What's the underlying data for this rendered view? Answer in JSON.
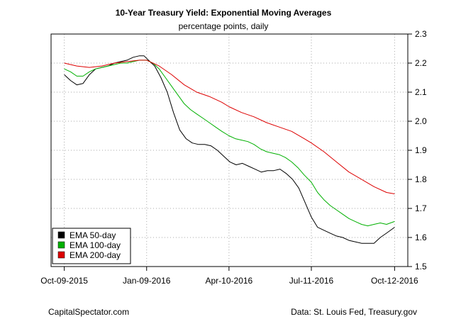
{
  "chart_data": {
    "type": "line",
    "title": "10-Year Treasury Yield: Exponential Moving Averages",
    "subtitle": "percentage points, daily",
    "xlabel": "",
    "ylabel": "",
    "x_ticks": [
      "Oct-09-2015",
      "Jan-09-2016",
      "Apr-10-2016",
      "Jul-11-2016",
      "Oct-12-2016"
    ],
    "x_tick_dates": [
      "2015-10-09",
      "2016-01-09",
      "2016-04-10",
      "2016-07-11",
      "2016-10-12"
    ],
    "xlim": [
      "2015-10-09",
      "2016-10-12"
    ],
    "ylim": [
      1.5,
      2.3
    ],
    "y_ticks": [
      1.5,
      1.6,
      1.7,
      1.8,
      1.9,
      2.0,
      2.1,
      2.2,
      2.3
    ],
    "y_axis_side": "right",
    "grid": true,
    "legend_position": "bottom-left",
    "series": [
      {
        "name": "EMA 50-day",
        "color": "#000000",
        "points": [
          [
            "2015-10-09",
            2.16
          ],
          [
            "2015-10-16",
            2.14
          ],
          [
            "2015-10-23",
            2.125
          ],
          [
            "2015-10-30",
            2.13
          ],
          [
            "2015-11-06",
            2.16
          ],
          [
            "2015-11-13",
            2.18
          ],
          [
            "2015-11-20",
            2.185
          ],
          [
            "2015-11-27",
            2.19
          ],
          [
            "2015-12-04",
            2.2
          ],
          [
            "2015-12-11",
            2.205
          ],
          [
            "2015-12-18",
            2.21
          ],
          [
            "2015-12-25",
            2.22
          ],
          [
            "2016-01-01",
            2.225
          ],
          [
            "2016-01-06",
            2.225
          ],
          [
            "2016-01-11",
            2.21
          ],
          [
            "2016-01-18",
            2.19
          ],
          [
            "2016-01-25",
            2.15
          ],
          [
            "2016-02-01",
            2.1
          ],
          [
            "2016-02-08",
            2.03
          ],
          [
            "2016-02-15",
            1.97
          ],
          [
            "2016-02-22",
            1.94
          ],
          [
            "2016-02-29",
            1.925
          ],
          [
            "2016-03-07",
            1.92
          ],
          [
            "2016-03-14",
            1.92
          ],
          [
            "2016-03-21",
            1.915
          ],
          [
            "2016-03-28",
            1.9
          ],
          [
            "2016-04-04",
            1.88
          ],
          [
            "2016-04-11",
            1.86
          ],
          [
            "2016-04-18",
            1.85
          ],
          [
            "2016-04-25",
            1.855
          ],
          [
            "2016-05-02",
            1.845
          ],
          [
            "2016-05-09",
            1.835
          ],
          [
            "2016-05-16",
            1.825
          ],
          [
            "2016-05-23",
            1.83
          ],
          [
            "2016-05-30",
            1.83
          ],
          [
            "2016-06-06",
            1.835
          ],
          [
            "2016-06-13",
            1.82
          ],
          [
            "2016-06-20",
            1.8
          ],
          [
            "2016-06-27",
            1.77
          ],
          [
            "2016-07-04",
            1.72
          ],
          [
            "2016-07-11",
            1.67
          ],
          [
            "2016-07-18",
            1.635
          ],
          [
            "2016-07-25",
            1.625
          ],
          [
            "2016-08-01",
            1.615
          ],
          [
            "2016-08-08",
            1.605
          ],
          [
            "2016-08-15",
            1.6
          ],
          [
            "2016-08-22",
            1.59
          ],
          [
            "2016-08-29",
            1.585
          ],
          [
            "2016-09-05",
            1.58
          ],
          [
            "2016-09-12",
            1.58
          ],
          [
            "2016-09-19",
            1.58
          ],
          [
            "2016-09-26",
            1.6
          ],
          [
            "2016-10-03",
            1.615
          ],
          [
            "2016-10-12",
            1.635
          ]
        ]
      },
      {
        "name": "EMA 100-day",
        "color": "#00b000",
        "points": [
          [
            "2015-10-09",
            2.18
          ],
          [
            "2015-10-16",
            2.17
          ],
          [
            "2015-10-23",
            2.155
          ],
          [
            "2015-10-30",
            2.155
          ],
          [
            "2015-11-06",
            2.17
          ],
          [
            "2015-11-13",
            2.18
          ],
          [
            "2015-11-20",
            2.185
          ],
          [
            "2015-11-27",
            2.19
          ],
          [
            "2015-12-04",
            2.195
          ],
          [
            "2015-12-11",
            2.2
          ],
          [
            "2015-12-18",
            2.2
          ],
          [
            "2015-12-25",
            2.205
          ],
          [
            "2016-01-01",
            2.21
          ],
          [
            "2016-01-09",
            2.21
          ],
          [
            "2016-01-16",
            2.2
          ],
          [
            "2016-01-23",
            2.18
          ],
          [
            "2016-01-30",
            2.15
          ],
          [
            "2016-02-06",
            2.12
          ],
          [
            "2016-02-13",
            2.09
          ],
          [
            "2016-02-20",
            2.06
          ],
          [
            "2016-02-27",
            2.04
          ],
          [
            "2016-03-05",
            2.025
          ],
          [
            "2016-03-12",
            2.01
          ],
          [
            "2016-03-19",
            1.995
          ],
          [
            "2016-03-26",
            1.98
          ],
          [
            "2016-04-02",
            1.965
          ],
          [
            "2016-04-10",
            1.95
          ],
          [
            "2016-04-17",
            1.94
          ],
          [
            "2016-04-24",
            1.935
          ],
          [
            "2016-05-01",
            1.93
          ],
          [
            "2016-05-08",
            1.92
          ],
          [
            "2016-05-15",
            1.905
          ],
          [
            "2016-05-22",
            1.895
          ],
          [
            "2016-05-29",
            1.89
          ],
          [
            "2016-06-05",
            1.885
          ],
          [
            "2016-06-12",
            1.875
          ],
          [
            "2016-06-19",
            1.86
          ],
          [
            "2016-06-26",
            1.84
          ],
          [
            "2016-07-03",
            1.815
          ],
          [
            "2016-07-11",
            1.79
          ],
          [
            "2016-07-18",
            1.755
          ],
          [
            "2016-07-25",
            1.73
          ],
          [
            "2016-08-01",
            1.71
          ],
          [
            "2016-08-08",
            1.695
          ],
          [
            "2016-08-15",
            1.68
          ],
          [
            "2016-08-22",
            1.665
          ],
          [
            "2016-08-29",
            1.655
          ],
          [
            "2016-09-05",
            1.645
          ],
          [
            "2016-09-12",
            1.64
          ],
          [
            "2016-09-19",
            1.645
          ],
          [
            "2016-09-26",
            1.65
          ],
          [
            "2016-10-03",
            1.645
          ],
          [
            "2016-10-12",
            1.655
          ]
        ]
      },
      {
        "name": "EMA 200-day",
        "color": "#dd0000",
        "points": [
          [
            "2015-10-09",
            2.2
          ],
          [
            "2015-10-23",
            2.19
          ],
          [
            "2015-11-06",
            2.185
          ],
          [
            "2015-11-20",
            2.19
          ],
          [
            "2015-12-04",
            2.2
          ],
          [
            "2015-12-18",
            2.205
          ],
          [
            "2016-01-01",
            2.21
          ],
          [
            "2016-01-09",
            2.21
          ],
          [
            "2016-01-23",
            2.19
          ],
          [
            "2016-02-06",
            2.16
          ],
          [
            "2016-02-20",
            2.125
          ],
          [
            "2016-03-05",
            2.1
          ],
          [
            "2016-03-19",
            2.085
          ],
          [
            "2016-04-02",
            2.065
          ],
          [
            "2016-04-10",
            2.05
          ],
          [
            "2016-04-24",
            2.03
          ],
          [
            "2016-05-08",
            2.015
          ],
          [
            "2016-05-22",
            1.995
          ],
          [
            "2016-06-05",
            1.98
          ],
          [
            "2016-06-19",
            1.965
          ],
          [
            "2016-07-03",
            1.94
          ],
          [
            "2016-07-11",
            1.925
          ],
          [
            "2016-07-25",
            1.895
          ],
          [
            "2016-08-08",
            1.86
          ],
          [
            "2016-08-22",
            1.825
          ],
          [
            "2016-09-05",
            1.8
          ],
          [
            "2016-09-19",
            1.775
          ],
          [
            "2016-10-03",
            1.755
          ],
          [
            "2016-10-12",
            1.75
          ]
        ]
      }
    ]
  },
  "footer": {
    "left": "CapitalSpectator.com",
    "right": "Data: St. Louis Fed, Treasury.gov"
  }
}
